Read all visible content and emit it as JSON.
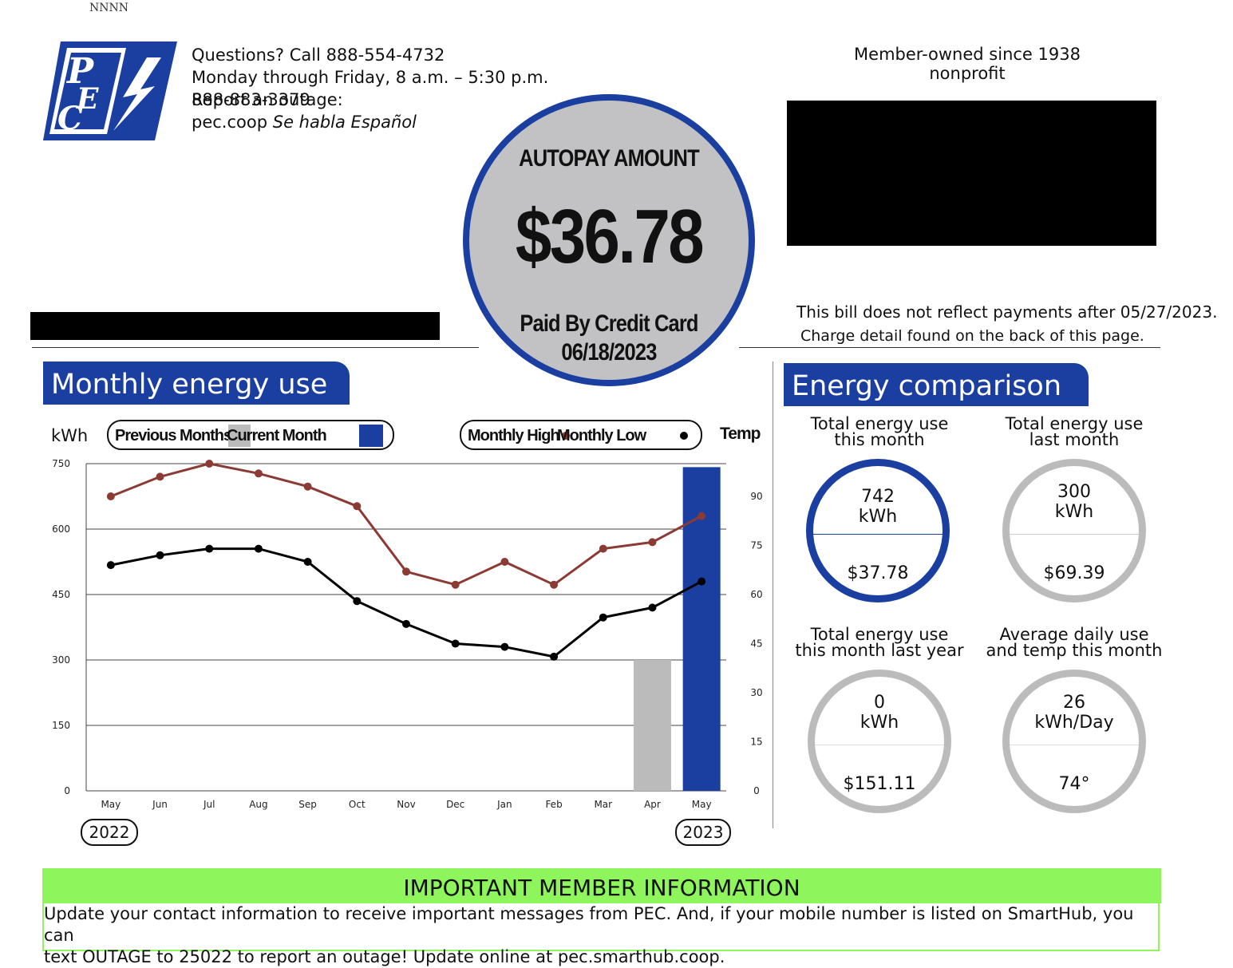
{
  "header": {
    "code": "NNNN",
    "logo_text": "PEC",
    "contact": {
      "line1": "Questions? Call 888-554-4732",
      "line2": "Monday through Friday, 8 a.m. – 5:30 p.m.",
      "line3a": "Report an outage:",
      "line3b": "888-883-3379",
      "line4_site": "pec.coop",
      "line4_spanish": "Se habla Español"
    },
    "member_line1": "Member-owned since 1938",
    "member_line2": "nonprofit"
  },
  "autopay": {
    "title": "AUTOPAY AMOUNT",
    "amount": "$36.78",
    "paid_by": "Paid By Credit Card",
    "date": "06/18/2023"
  },
  "bill_note": {
    "line1": "This bill does not reflect payments after 05/27/2023.",
    "line2": "Charge detail found on the back of this page."
  },
  "monthly_energy": {
    "title": "Monthly energy use",
    "kwh_label": "kWh",
    "legend_previous": "Previous Months",
    "legend_current": "Current Month",
    "legend_high": "Monthly High",
    "legend_low": "Monthly Low",
    "temp_label": "Temp",
    "year_start": "2022",
    "year_end": "2023"
  },
  "chart_data": {
    "type": "bar",
    "categories": [
      "May",
      "Jun",
      "Jul",
      "Aug",
      "Sep",
      "Oct",
      "Nov",
      "Dec",
      "Jan",
      "Feb",
      "Mar",
      "Apr",
      "May"
    ],
    "ylabel": "kWh",
    "ylim": [
      0,
      750
    ],
    "yticks": [
      0,
      150,
      300,
      450,
      600,
      750
    ],
    "y2label": "Temp",
    "y2lim": [
      0,
      100
    ],
    "y2ticks": [
      0,
      15,
      30,
      45,
      60,
      75,
      90
    ],
    "grid": true,
    "series": [
      {
        "name": "Previous Months",
        "kind": "bar",
        "color": "#bbbbbb",
        "values": [
          null,
          null,
          null,
          null,
          null,
          null,
          null,
          null,
          null,
          null,
          null,
          300,
          null
        ]
      },
      {
        "name": "Current Month",
        "kind": "bar",
        "color": "#1a3fa0",
        "values": [
          null,
          null,
          null,
          null,
          null,
          null,
          null,
          null,
          null,
          null,
          null,
          null,
          742
        ]
      },
      {
        "name": "Monthly High",
        "kind": "line",
        "axis": "temp",
        "color": "#8b3a34",
        "values": [
          90,
          96,
          100,
          97,
          93,
          87,
          67,
          63,
          70,
          63,
          74,
          76,
          84
        ]
      },
      {
        "name": "Monthly Low",
        "kind": "line",
        "axis": "temp",
        "color": "#000000",
        "values": [
          69,
          72,
          74,
          74,
          70,
          58,
          51,
          45,
          44,
          41,
          53,
          56,
          64
        ]
      }
    ]
  },
  "energy_comparison": {
    "title": "Energy comparison",
    "tiles": [
      {
        "label1": "Total energy use",
        "label2": "this month",
        "value": "742",
        "unit": "kWh",
        "bottom": "$37.78",
        "style": "blue"
      },
      {
        "label1": "Total energy use",
        "label2": "last month",
        "value": "300",
        "unit": "kWh",
        "bottom": "$69.39",
        "style": "gray"
      },
      {
        "label1": "Total energy use",
        "label2": "this month last year",
        "value": "0",
        "unit": "kWh",
        "bottom": "$151.11",
        "style": "gray"
      },
      {
        "label1": "Average daily use",
        "label2": "and temp this month",
        "value": "26",
        "unit": "kWh/Day",
        "bottom": "74°",
        "style": "gray"
      }
    ]
  },
  "important": {
    "title": "IMPORTANT MEMBER INFORMATION",
    "line1": "Update your contact information to receive important messages from PEC. And, if your mobile number is listed on SmartHub, you can",
    "line2": "text OUTAGE to 25022 to report an outage! Update online at pec.smarthub.coop."
  },
  "colors": {
    "brand_blue": "#1a3fa0",
    "highlight_green": "#8ef55c",
    "high_line": "#8b3a34"
  }
}
